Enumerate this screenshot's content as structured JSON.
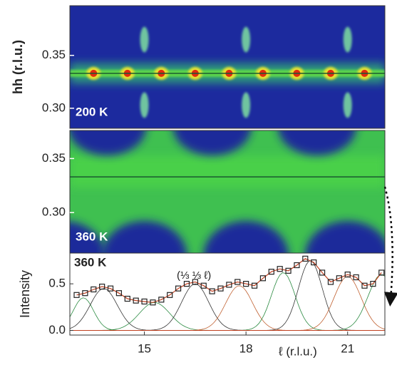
{
  "chart_data": [
    {
      "type": "heatmap",
      "ylabel": "hh (r.l.u.)",
      "annotation": "200 K",
      "xlim": [
        12.8,
        22.1
      ],
      "ylim": [
        0.281,
        0.397
      ],
      "yticks": [
        {
          "value": 0.3,
          "label": "0.30"
        },
        {
          "value": 0.35,
          "label": "0.35"
        }
      ],
      "spots": {
        "x": [
          13.5,
          14.5,
          15.5,
          16.5,
          17.5,
          18.5,
          19.5,
          20.5,
          21.5
        ],
        "y": [
          0.333,
          0.333,
          0.333,
          0.333,
          0.333,
          0.333,
          0.333,
          0.333,
          0.333
        ]
      },
      "streaks": {
        "x": [
          15,
          18,
          21,
          15,
          18,
          21
        ],
        "y": [
          0.303,
          0.303,
          0.303,
          0.365,
          0.365,
          0.365
        ]
      },
      "hline": 0.333
    },
    {
      "type": "heatmap",
      "annotation": "360 K",
      "xlim": [
        12.8,
        22.1
      ],
      "ylim": [
        0.2625,
        0.376
      ],
      "yticks": [
        {
          "value": 0.3,
          "label": "0.30"
        },
        {
          "value": 0.35,
          "label": "0.35"
        }
      ],
      "hline": 0.333
    },
    {
      "type": "scatter",
      "ylabel": "Intensity",
      "xlabel": "ℓ (r.l.u.)",
      "annotation": "360 K",
      "annotation2": "(⅓ ⅓ ℓ)",
      "xlim": [
        12.8,
        22.1
      ],
      "ylim": [
        -0.05,
        0.83
      ],
      "xticks": [
        15,
        18,
        21
      ],
      "yticks": [
        {
          "value": 0.0,
          "label": "0.0"
        },
        {
          "value": 0.5,
          "label": "0.5"
        }
      ],
      "x": [
        13.0,
        13.25,
        13.5,
        13.75,
        14.0,
        14.25,
        14.5,
        14.75,
        15.0,
        15.25,
        15.5,
        15.75,
        16.0,
        16.25,
        16.5,
        16.75,
        17.0,
        17.25,
        17.5,
        17.75,
        18.0,
        18.25,
        18.5,
        18.75,
        19.0,
        19.25,
        19.5,
        19.75,
        20.0,
        20.25,
        20.5,
        20.75,
        21.0,
        21.25,
        21.5,
        21.75,
        22.0
      ],
      "values": [
        0.38,
        0.4,
        0.44,
        0.47,
        0.45,
        0.4,
        0.34,
        0.32,
        0.31,
        0.3,
        0.33,
        0.38,
        0.45,
        0.5,
        0.52,
        0.48,
        0.42,
        0.45,
        0.49,
        0.52,
        0.5,
        0.48,
        0.56,
        0.63,
        0.66,
        0.64,
        0.7,
        0.77,
        0.73,
        0.62,
        0.52,
        0.56,
        0.6,
        0.57,
        0.48,
        0.5,
        0.62
      ],
      "fits": {
        "centers": [
          13.2,
          13.8,
          15.3,
          16.5,
          17.8,
          19.1,
          19.9,
          21.0,
          22.0
        ],
        "amplitudes": [
          0.35,
          0.45,
          0.3,
          0.5,
          0.48,
          0.62,
          0.75,
          0.58,
          0.6
        ],
        "widths": [
          0.3,
          0.4,
          0.45,
          0.4,
          0.4,
          0.35,
          0.35,
          0.4,
          0.4
        ]
      }
    }
  ]
}
